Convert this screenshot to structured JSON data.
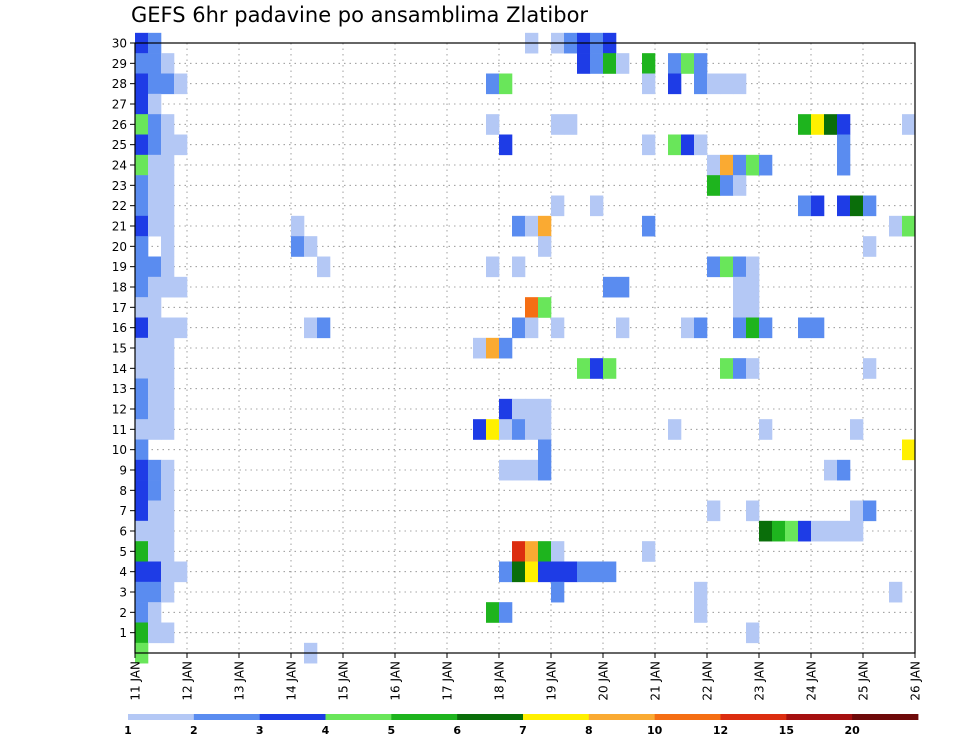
{
  "title": "GEFS 6hr padavine po ansamblima Zlatibor",
  "chart_data": {
    "type": "heatmap",
    "title": "GEFS 6hr padavine po ansamblima Zlatibor",
    "xlabel": "",
    "ylabel": "",
    "x_tick_labels": [
      "11 JAN",
      "12 JAN",
      "13 JAN",
      "14 JAN",
      "15 JAN",
      "16 JAN",
      "17 JAN",
      "18 JAN",
      "19 JAN",
      "20 JAN",
      "21 JAN",
      "22 JAN",
      "23 JAN",
      "24 JAN",
      "25 JAN",
      "26 JAN"
    ],
    "x_tick_positions": [
      11,
      12,
      13,
      14,
      15,
      16,
      17,
      18,
      19,
      20,
      21,
      22,
      23,
      24,
      25,
      26
    ],
    "xlim": [
      11,
      26
    ],
    "y_ticks": [
      1,
      2,
      3,
      4,
      5,
      6,
      7,
      8,
      9,
      10,
      11,
      12,
      13,
      14,
      15,
      16,
      17,
      18,
      19,
      20,
      21,
      22,
      23,
      24,
      25,
      26,
      27,
      28,
      29,
      30
    ],
    "ylim": [
      0,
      30
    ],
    "grid": true,
    "legend_placement": "bottom",
    "color_levels": [
      1,
      2,
      3,
      4,
      5,
      6,
      7,
      8,
      10,
      12,
      15,
      20
    ],
    "color_scale": [
      "#b4c8f5",
      "#5a8cf0",
      "#1e3ce6",
      "#69e65a",
      "#1eb41e",
      "#0a6e0a",
      "#fff000",
      "#faaa32",
      "#f56e14",
      "#dc2d0f",
      "#a50f0f",
      "#6e0a0a"
    ],
    "cells": [
      [
        11.0,
        30,
        2
      ],
      [
        11.25,
        30,
        1
      ],
      [
        11.0,
        29,
        1
      ],
      [
        11.25,
        29,
        1
      ],
      [
        11.5,
        29,
        0
      ],
      [
        11.0,
        28,
        2
      ],
      [
        11.25,
        28,
        1
      ],
      [
        11.5,
        28,
        1
      ],
      [
        11.75,
        28,
        0
      ],
      [
        11.0,
        27,
        2
      ],
      [
        11.25,
        27,
        0
      ],
      [
        11.0,
        26,
        3
      ],
      [
        11.25,
        26,
        1
      ],
      [
        11.5,
        26,
        0
      ],
      [
        11.0,
        25,
        2
      ],
      [
        11.25,
        25,
        1
      ],
      [
        11.5,
        25,
        0
      ],
      [
        11.75,
        25,
        0
      ],
      [
        11.0,
        24,
        3
      ],
      [
        11.25,
        24,
        0
      ],
      [
        11.5,
        24,
        0
      ],
      [
        11.0,
        23,
        1
      ],
      [
        11.25,
        23,
        0
      ],
      [
        11.5,
        23,
        0
      ],
      [
        11.0,
        22,
        1
      ],
      [
        11.25,
        22,
        0
      ],
      [
        11.5,
        22,
        0
      ],
      [
        11.0,
        21,
        2
      ],
      [
        11.25,
        21,
        0
      ],
      [
        11.5,
        21,
        0
      ],
      [
        11.0,
        20,
        1
      ],
      [
        11.5,
        20,
        0
      ],
      [
        11.0,
        19,
        1
      ],
      [
        11.25,
        19,
        1
      ],
      [
        11.5,
        19,
        0
      ],
      [
        11.0,
        18,
        1
      ],
      [
        11.25,
        18,
        0
      ],
      [
        11.5,
        18,
        0
      ],
      [
        11.75,
        18,
        0
      ],
      [
        11.0,
        17,
        0
      ],
      [
        11.25,
        17,
        0
      ],
      [
        11.0,
        16,
        2
      ],
      [
        11.25,
        16,
        0
      ],
      [
        11.5,
        16,
        0
      ],
      [
        11.75,
        16,
        0
      ],
      [
        11.0,
        15,
        0
      ],
      [
        11.25,
        15,
        0
      ],
      [
        11.5,
        15,
        0
      ],
      [
        11.0,
        14,
        0
      ],
      [
        11.25,
        14,
        0
      ],
      [
        11.5,
        14,
        0
      ],
      [
        11.0,
        13,
        1
      ],
      [
        11.25,
        13,
        0
      ],
      [
        11.5,
        13,
        0
      ],
      [
        11.0,
        12,
        1
      ],
      [
        11.25,
        12,
        0
      ],
      [
        11.5,
        12,
        0
      ],
      [
        11.0,
        11,
        0
      ],
      [
        11.25,
        11,
        0
      ],
      [
        11.5,
        11,
        0
      ],
      [
        11.0,
        10,
        1
      ],
      [
        11.0,
        9,
        2
      ],
      [
        11.25,
        9,
        1
      ],
      [
        11.5,
        9,
        0
      ],
      [
        11.0,
        8,
        2
      ],
      [
        11.25,
        8,
        1
      ],
      [
        11.5,
        8,
        0
      ],
      [
        11.0,
        7,
        2
      ],
      [
        11.25,
        7,
        0
      ],
      [
        11.5,
        7,
        0
      ],
      [
        11.0,
        6,
        0
      ],
      [
        11.25,
        6,
        0
      ],
      [
        11.5,
        6,
        0
      ],
      [
        11.0,
        5,
        4
      ],
      [
        11.25,
        5,
        0
      ],
      [
        11.5,
        5,
        0
      ],
      [
        11.0,
        4,
        2
      ],
      [
        11.25,
        4,
        2
      ],
      [
        11.5,
        4,
        0
      ],
      [
        11.75,
        4,
        0
      ],
      [
        11.0,
        3,
        1
      ],
      [
        11.25,
        3,
        1
      ],
      [
        11.5,
        3,
        0
      ],
      [
        11.0,
        2,
        1
      ],
      [
        11.25,
        2,
        0
      ],
      [
        11.0,
        1,
        4
      ],
      [
        11.25,
        1,
        0
      ],
      [
        11.5,
        1,
        0
      ],
      [
        11.0,
        0,
        3
      ],
      [
        14.0,
        21,
        0
      ],
      [
        14.0,
        20,
        1
      ],
      [
        14.25,
        20,
        0
      ],
      [
        14.5,
        19,
        0
      ],
      [
        14.25,
        16,
        0
      ],
      [
        14.5,
        16,
        1
      ],
      [
        14.25,
        0,
        0
      ],
      [
        17.75,
        28,
        1
      ],
      [
        18.0,
        28,
        3
      ],
      [
        17.75,
        26,
        0
      ],
      [
        18.0,
        25,
        2
      ],
      [
        18.25,
        21,
        1
      ],
      [
        18.5,
        21,
        0
      ],
      [
        18.75,
        21,
        7
      ],
      [
        18.75,
        20,
        0
      ],
      [
        17.75,
        19,
        0
      ],
      [
        18.25,
        19,
        0
      ],
      [
        18.5,
        17,
        8
      ],
      [
        18.75,
        17,
        3
      ],
      [
        18.25,
        16,
        1
      ],
      [
        18.5,
        16,
        0
      ],
      [
        19.0,
        16,
        0
      ],
      [
        17.5,
        15,
        0
      ],
      [
        17.75,
        15,
        7
      ],
      [
        18.0,
        15,
        1
      ],
      [
        18.0,
        12,
        2
      ],
      [
        18.25,
        12,
        0
      ],
      [
        18.5,
        12,
        0
      ],
      [
        18.75,
        12,
        0
      ],
      [
        17.5,
        11,
        2
      ],
      [
        17.75,
        11,
        6
      ],
      [
        18.0,
        11,
        0
      ],
      [
        18.25,
        11,
        1
      ],
      [
        18.5,
        11,
        0
      ],
      [
        18.75,
        11,
        0
      ],
      [
        18.75,
        10,
        1
      ],
      [
        18.0,
        9,
        0
      ],
      [
        18.25,
        9,
        0
      ],
      [
        18.5,
        9,
        0
      ],
      [
        18.75,
        9,
        1
      ],
      [
        18.25,
        5,
        9
      ],
      [
        18.5,
        5,
        7
      ],
      [
        18.75,
        5,
        4
      ],
      [
        19.0,
        5,
        0
      ],
      [
        18.0,
        4,
        1
      ],
      [
        18.25,
        4,
        5
      ],
      [
        18.5,
        4,
        6
      ],
      [
        18.75,
        4,
        2
      ],
      [
        19.0,
        4,
        2
      ],
      [
        19.25,
        4,
        2
      ],
      [
        19.5,
        4,
        1
      ],
      [
        19.75,
        4,
        1
      ],
      [
        20.0,
        4,
        1
      ],
      [
        19.0,
        3,
        1
      ],
      [
        17.75,
        2,
        4
      ],
      [
        18.0,
        2,
        1
      ],
      [
        18.5,
        30,
        0
      ],
      [
        19.0,
        30,
        0
      ],
      [
        19.25,
        30,
        1
      ],
      [
        19.5,
        30,
        2
      ],
      [
        19.75,
        30,
        1
      ],
      [
        20.0,
        30,
        2
      ],
      [
        19.5,
        29,
        2
      ],
      [
        19.75,
        29,
        1
      ],
      [
        20.0,
        29,
        4
      ],
      [
        20.25,
        29,
        0
      ],
      [
        20.75,
        29,
        4
      ],
      [
        21.25,
        29,
        1
      ],
      [
        21.5,
        29,
        3
      ],
      [
        21.75,
        29,
        1
      ],
      [
        20.75,
        28,
        0
      ],
      [
        21.25,
        28,
        2
      ],
      [
        21.75,
        28,
        1
      ],
      [
        22.0,
        28,
        0
      ],
      [
        22.25,
        28,
        0
      ],
      [
        22.5,
        28,
        0
      ],
      [
        19.0,
        26,
        0
      ],
      [
        19.25,
        26,
        0
      ],
      [
        20.75,
        25,
        0
      ],
      [
        21.25,
        25,
        3
      ],
      [
        21.5,
        25,
        2
      ],
      [
        21.75,
        25,
        0
      ],
      [
        22.0,
        24,
        0
      ],
      [
        22.25,
        24,
        7
      ],
      [
        22.5,
        24,
        1
      ],
      [
        22.75,
        24,
        3
      ],
      [
        23.0,
        24,
        1
      ],
      [
        22.0,
        23,
        4
      ],
      [
        22.25,
        23,
        1
      ],
      [
        22.5,
        23,
        0
      ],
      [
        19.0,
        22,
        0
      ],
      [
        19.75,
        22,
        0
      ],
      [
        20.75,
        21,
        1
      ],
      [
        20.0,
        18,
        1
      ],
      [
        20.25,
        18,
        1
      ],
      [
        22.0,
        19,
        1
      ],
      [
        22.25,
        19,
        3
      ],
      [
        22.5,
        19,
        1
      ],
      [
        22.75,
        19,
        0
      ],
      [
        22.5,
        18,
        0
      ],
      [
        22.75,
        18,
        0
      ],
      [
        22.5,
        17,
        0
      ],
      [
        22.75,
        17,
        0
      ],
      [
        20.25,
        16,
        0
      ],
      [
        21.5,
        16,
        0
      ],
      [
        21.75,
        16,
        1
      ],
      [
        22.5,
        16,
        1
      ],
      [
        22.75,
        16,
        4
      ],
      [
        23.0,
        16,
        1
      ],
      [
        19.5,
        14,
        3
      ],
      [
        19.75,
        14,
        2
      ],
      [
        20.0,
        14,
        3
      ],
      [
        22.25,
        14,
        3
      ],
      [
        22.5,
        14,
        1
      ],
      [
        22.75,
        14,
        0
      ],
      [
        21.25,
        11,
        0
      ],
      [
        23.0,
        11,
        0
      ],
      [
        22.0,
        7,
        0
      ],
      [
        22.75,
        7,
        0
      ],
      [
        20.75,
        5,
        0
      ],
      [
        21.75,
        2,
        0
      ],
      [
        21.75,
        3,
        0
      ],
      [
        22.75,
        1,
        0
      ],
      [
        23.75,
        26,
        4
      ],
      [
        24.0,
        26,
        6
      ],
      [
        24.25,
        26,
        5
      ],
      [
        24.5,
        26,
        2
      ],
      [
        24.5,
        25,
        1
      ],
      [
        24.5,
        24,
        1
      ],
      [
        23.75,
        22,
        1
      ],
      [
        24.0,
        22,
        2
      ],
      [
        24.5,
        22,
        2
      ],
      [
        24.75,
        22,
        5
      ],
      [
        25.0,
        22,
        1
      ],
      [
        23.75,
        16,
        1
      ],
      [
        24.0,
        16,
        1
      ],
      [
        23.0,
        6,
        5
      ],
      [
        23.25,
        6,
        4
      ],
      [
        23.5,
        6,
        3
      ],
      [
        23.75,
        6,
        2
      ],
      [
        24.0,
        6,
        0
      ],
      [
        24.25,
        6,
        0
      ],
      [
        24.5,
        6,
        0
      ],
      [
        24.75,
        6,
        0
      ],
      [
        24.75,
        7,
        0
      ],
      [
        25.0,
        7,
        1
      ],
      [
        24.25,
        9,
        0
      ],
      [
        24.5,
        9,
        1
      ],
      [
        24.75,
        11,
        0
      ],
      [
        25.0,
        14,
        0
      ],
      [
        25.0,
        20,
        0
      ],
      [
        25.5,
        21,
        0
      ],
      [
        25.75,
        21,
        3
      ],
      [
        25.75,
        26,
        0
      ],
      [
        25.75,
        10,
        6
      ],
      [
        25.5,
        3,
        0
      ]
    ]
  }
}
